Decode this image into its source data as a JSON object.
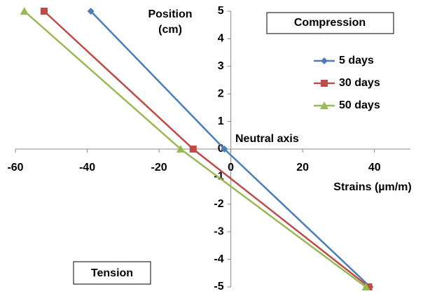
{
  "chart_data": {
    "type": "line",
    "x_label": "Strains (µm/m)",
    "y_label": "Position (cm)",
    "annotations": [
      "Neutral axis",
      "Compression",
      "Tension"
    ],
    "xlim": [
      -60,
      50
    ],
    "xticks": [
      -60,
      -40,
      -20,
      0,
      20,
      40
    ],
    "ylim": [
      -5,
      5
    ],
    "yticks": [
      -5,
      -4,
      -3,
      -2,
      -1,
      0,
      1,
      2,
      3,
      4,
      5
    ],
    "grid": false,
    "legend": "right",
    "series": [
      {
        "name": "5 days",
        "color": "#4a7ebb",
        "marker": "diamond",
        "x": [
          -39,
          -1.8,
          38.8
        ],
        "values": [
          5,
          0,
          -5
        ]
      },
      {
        "name": "30 days",
        "color": "#be4b48",
        "marker": "square",
        "x": [
          -52,
          -10.5,
          38.4
        ],
        "values": [
          5,
          0,
          -5
        ]
      },
      {
        "name": "50 days",
        "color": "#98b954",
        "marker": "triangle",
        "x": [
          -57.5,
          -14,
          37.6
        ],
        "values": [
          5,
          0,
          -5
        ]
      }
    ]
  }
}
